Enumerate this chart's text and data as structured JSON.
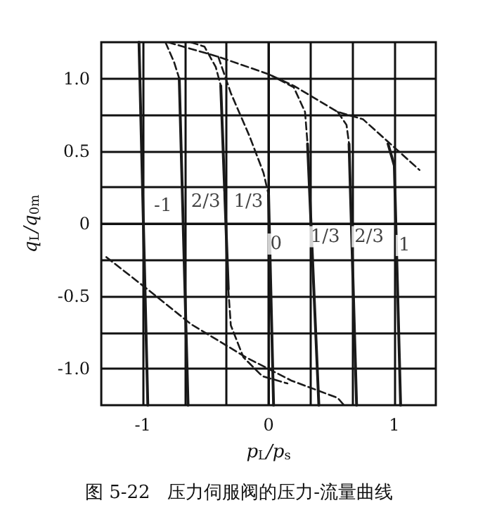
{
  "chart_data": {
    "type": "line",
    "title": "图 5-22   压力伺服阀的压力-流量曲线",
    "xlabel": "p$_{L}$/p$_{s}$",
    "ylabel": "q$_{L}$/q$_{0m}$",
    "xlim": [
      -1.33,
      1.33
    ],
    "ylim": [
      -1.25,
      1.25
    ],
    "xticks": [
      -1,
      {
        "value": -0.667,
        "label": null
      },
      {
        "value": -0.333,
        "label": null
      },
      0,
      {
        "value": 0.333,
        "label": null
      },
      {
        "value": 0.667,
        "label": null
      },
      1
    ],
    "yticks": [
      {
        "value": -1,
        "label": "-1.0"
      },
      {
        "value": -0.75,
        "label": null
      },
      {
        "value": -0.5,
        "label": "-0.5"
      },
      {
        "value": -0.25,
        "label": null
      },
      0,
      {
        "value": 0.25,
        "label": null
      },
      0.5,
      {
        "value": 0.75,
        "label": null
      },
      {
        "value": 1,
        "label": "1.0"
      }
    ],
    "grid": true,
    "marker": "none",
    "series": [
      {
        "color": "#1a1a1a",
        "line_style": "solid",
        "x": [
          -1.03,
          -0.96
        ],
        "values": [
          1.25,
          -1.25
        ]
      },
      {
        "color": "#1a1a1a",
        "line_style": "dashed",
        "x": [
          -0.82,
          -0.75,
          -0.71
        ],
        "values": [
          1.25,
          1.11,
          1.0
        ]
      },
      {
        "color": "#1a1a1a",
        "line_style": "solid",
        "x": [
          -0.71,
          -0.64
        ],
        "values": [
          1.0,
          -1.25
        ]
      },
      {
        "color": "#1a1a1a",
        "line_style": "solid",
        "x": [
          -0.38,
          -0.32
        ],
        "values": [
          0.95,
          -0.45
        ]
      },
      {
        "color": "#1a1a1a",
        "line_style": "dashed",
        "x": [
          -0.32,
          -0.3,
          -0.2,
          -0.05,
          0.15
        ],
        "values": [
          -0.45,
          -0.7,
          -0.92,
          -1.05,
          -1.1
        ]
      },
      {
        "color": "#1a1a1a",
        "line_style": "dashed",
        "x": [
          -0.62,
          -0.51,
          -0.42,
          -0.38
        ],
        "values": [
          1.25,
          1.22,
          1.08,
          0.95
        ]
      },
      {
        "color": "#1a1a1a",
        "line_style": "dashed",
        "x": [
          -0.4,
          -0.3,
          -0.15,
          -0.04,
          0
        ],
        "values": [
          1.15,
          0.9,
          0.6,
          0.35,
          0.2
        ]
      },
      {
        "color": "#1a1a1a",
        "line_style": "solid",
        "x": [
          0,
          0.04
        ],
        "values": [
          0.2,
          -1.25
        ]
      },
      {
        "color": "#1a1a1a",
        "line_style": "dashed",
        "x": [
          0,
          0.2,
          0.29,
          0.31
        ],
        "values": [
          1.03,
          0.94,
          0.77,
          0.55
        ]
      },
      {
        "color": "#1a1a1a",
        "line_style": "solid",
        "x": [
          0.31,
          0.4
        ],
        "values": [
          0.55,
          -1.25
        ]
      },
      {
        "color": "#1a1a1a",
        "line_style": "dashed",
        "x": [
          0.55,
          0.62,
          0.64
        ],
        "values": [
          0.77,
          0.68,
          0.55
        ]
      },
      {
        "color": "#1a1a1a",
        "line_style": "solid",
        "x": [
          0.64,
          0.7
        ],
        "values": [
          0.55,
          -1.25
        ]
      },
      {
        "color": "#1a1a1a",
        "line_style": "solid",
        "x": [
          0.95,
          1.0,
          1.05
        ],
        "values": [
          0.55,
          0.4,
          -1.25
        ]
      },
      {
        "color": "#1a1a1a",
        "line_style": "dashed",
        "x": [
          -0.8,
          -0.4,
          0,
          0.2,
          0.55,
          0.75,
          1.2
        ],
        "values": [
          1.25,
          1.15,
          1.03,
          0.95,
          0.77,
          0.72,
          0.37
        ]
      },
      {
        "color": "#1a1a1a",
        "line_style": "dashed",
        "x": [
          -1.29,
          -0.95,
          -0.62,
          -0.18,
          0.18,
          0.55,
          0.6
        ],
        "values": [
          -0.23,
          -0.46,
          -0.69,
          -0.92,
          -1.08,
          -1.2,
          -1.25
        ]
      }
    ],
    "annotations": [
      {
        "text": "-1",
        "x": -0.84,
        "y": 0.12
      },
      {
        "text": "2/3",
        "x": -0.5,
        "y": 0.15
      },
      {
        "text": "1/3",
        "x": -0.16,
        "y": 0.15
      },
      {
        "text": "0",
        "x": 0.06,
        "y": -0.14
      },
      {
        "text": "1/3",
        "x": 0.45,
        "y": -0.09
      },
      {
        "text": "2/3",
        "x": 0.8,
        "y": -0.09
      },
      {
        "text": "1",
        "x": 1.08,
        "y": -0.15
      }
    ]
  }
}
